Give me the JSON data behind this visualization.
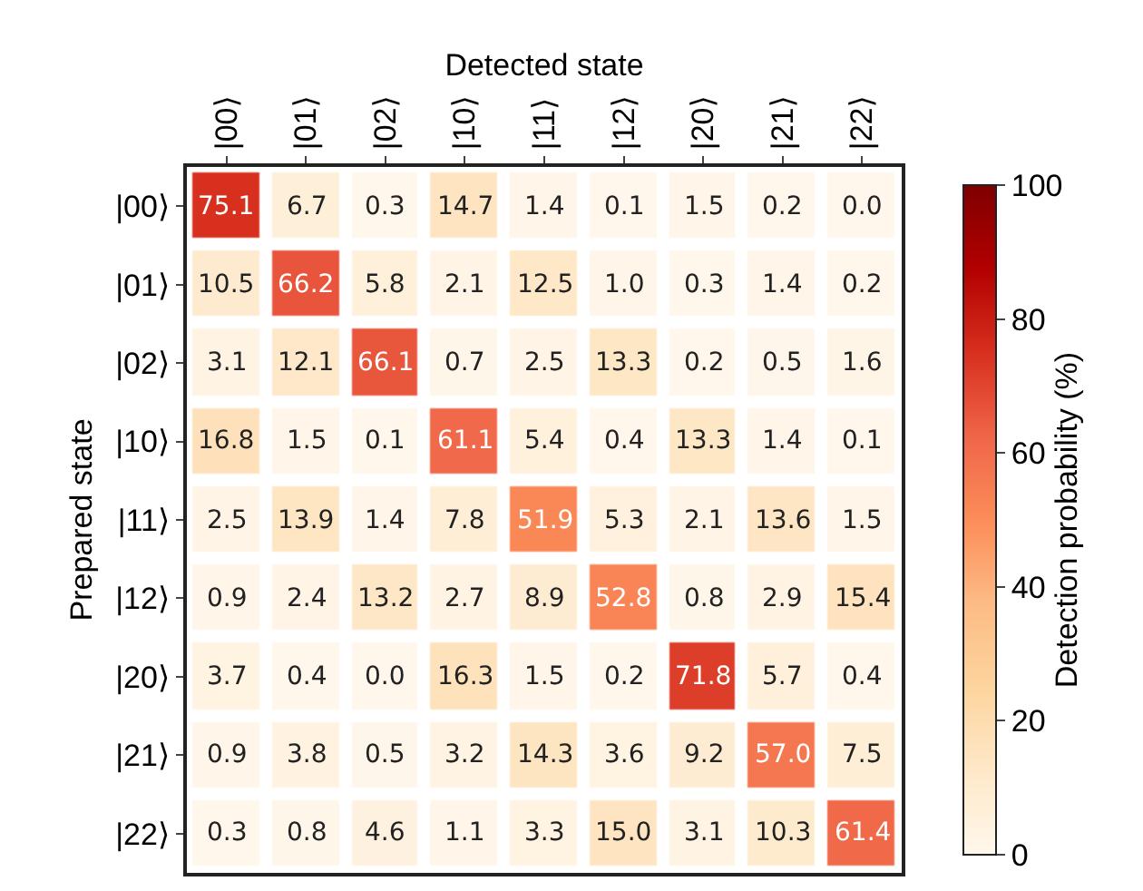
{
  "chart_data": {
    "type": "heatmap",
    "xlabel": "Detected state",
    "ylabel": "Prepared state",
    "clabel": "Detection probability (%)",
    "categories": [
      "|00⟩",
      "|01⟩",
      "|02⟩",
      "|10⟩",
      "|11⟩",
      "|12⟩",
      "|20⟩",
      "|21⟩",
      "|22⟩"
    ],
    "y_categories": [
      "|00⟩",
      "|01⟩",
      "|02⟩",
      "|10⟩",
      "|11⟩",
      "|12⟩",
      "|20⟩",
      "|21⟩",
      "|22⟩"
    ],
    "cells": [
      [
        75.1,
        6.7,
        0.3,
        14.7,
        1.4,
        0.1,
        1.5,
        0.2,
        0.0
      ],
      [
        10.5,
        66.2,
        5.8,
        2.1,
        12.5,
        1.0,
        0.3,
        1.4,
        0.2
      ],
      [
        3.1,
        12.1,
        66.1,
        0.7,
        2.5,
        13.3,
        0.2,
        0.5,
        1.6
      ],
      [
        16.8,
        1.5,
        0.1,
        61.1,
        5.4,
        0.4,
        13.3,
        1.4,
        0.1
      ],
      [
        2.5,
        13.9,
        1.4,
        7.8,
        51.9,
        5.3,
        2.1,
        13.6,
        1.5
      ],
      [
        0.9,
        2.4,
        13.2,
        2.7,
        8.9,
        52.8,
        0.8,
        2.9,
        15.4
      ],
      [
        3.7,
        0.4,
        0.0,
        16.3,
        1.5,
        0.2,
        71.8,
        5.7,
        0.4
      ],
      [
        0.9,
        3.8,
        0.5,
        3.2,
        14.3,
        3.6,
        9.2,
        57.0,
        7.5
      ],
      [
        0.3,
        0.8,
        4.6,
        1.1,
        3.3,
        15.0,
        3.1,
        10.3,
        61.4
      ]
    ],
    "cell_labels": [
      [
        "75.1",
        "6.7",
        "0.3",
        "14.7",
        "1.4",
        "0.1",
        "1.5",
        "0.2",
        "0.0"
      ],
      [
        "10.5",
        "66.2",
        "5.8",
        "2.1",
        "12.5",
        "1.0",
        "0.3",
        "1.4",
        "0.2"
      ],
      [
        "3.1",
        "12.1",
        "66.1",
        "0.7",
        "2.5",
        "13.3",
        "0.2",
        "0.5",
        "1.6"
      ],
      [
        "16.8",
        "1.5",
        "0.1",
        "61.1",
        "5.4",
        "0.4",
        "13.3",
        "1.4",
        "0.1"
      ],
      [
        "2.5",
        "13.9",
        "1.4",
        "7.8",
        "51.9",
        "5.3",
        "2.1",
        "13.6",
        "1.5"
      ],
      [
        "0.9",
        "2.4",
        "13.2",
        "2.7",
        "8.9",
        "52.8",
        "0.8",
        "2.9",
        "15.4"
      ],
      [
        "3.7",
        "0.4",
        "0.0",
        "16.3",
        "1.5",
        "0.2",
        "71.8",
        "5.7",
        "0.4"
      ],
      [
        "0.9",
        "3.8",
        "0.5",
        "3.2",
        "14.3",
        "3.6",
        "9.2",
        "57.0",
        "7.5"
      ],
      [
        "0.3",
        "0.8",
        "4.6",
        "1.1",
        "3.3",
        "15.0",
        "3.1",
        "10.3",
        "61.4"
      ]
    ],
    "clim": [
      0,
      100
    ],
    "cticks": [
      0,
      20,
      40,
      60,
      80,
      100
    ]
  }
}
